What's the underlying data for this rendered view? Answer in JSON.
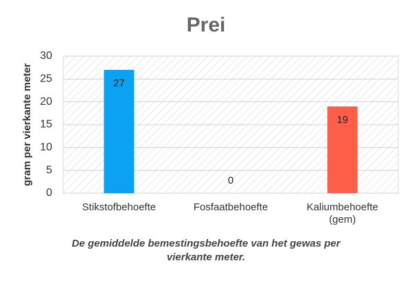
{
  "chart_data": {
    "type": "bar",
    "title": "Prei",
    "y_label": "gram per vierkante meter",
    "categories": [
      "Stikstofbehoefte",
      "Fosfaatbehoefte",
      "Kaliumbehoefte (gem)"
    ],
    "values": [
      27,
      0,
      19
    ],
    "colors": [
      "#0ba2f4",
      "#9e9e9e",
      "#ff5e48"
    ],
    "ylim": [
      0,
      30
    ],
    "yticks": [
      0,
      5,
      10,
      15,
      20,
      25,
      30
    ],
    "grid": true,
    "caption": "De gemiddelde bemestingsbehoefte van het gewas per vierkante meter."
  }
}
